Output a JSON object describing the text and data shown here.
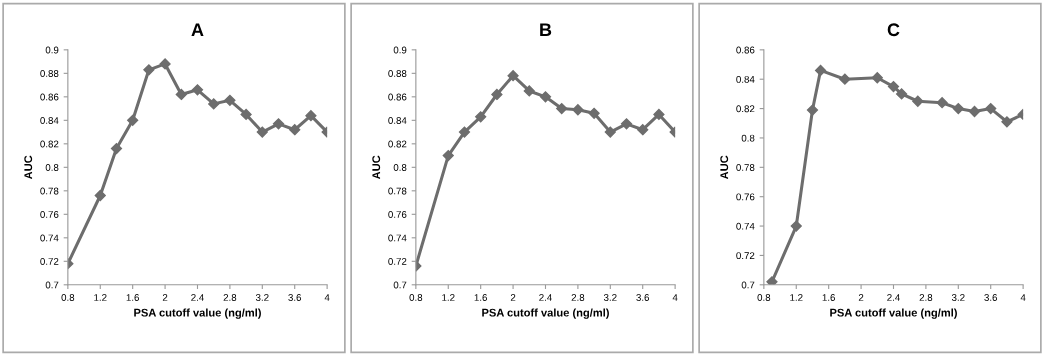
{
  "chart_data": [
    {
      "type": "line",
      "title": "A",
      "xlabel": "PSA cutoff value (ng/ml)",
      "ylabel": "AUC",
      "marker": "diamond",
      "grid": false,
      "x": [
        0.8,
        1.2,
        1.4,
        1.6,
        1.8,
        2.0,
        2.2,
        2.4,
        2.6,
        2.8,
        3.0,
        3.2,
        3.4,
        3.6,
        3.8,
        4.0
      ],
      "series": [
        {
          "color": "#6d6d6d",
          "values": [
            0.718,
            0.776,
            0.816,
            0.84,
            0.883,
            0.888,
            0.862,
            0.866,
            0.854,
            0.857,
            0.845,
            0.83,
            0.837,
            0.832,
            0.844,
            0.83
          ]
        }
      ],
      "xlim": [
        0.8,
        4
      ],
      "xticks": [
        0.8,
        1.2,
        1.6,
        2,
        2.4,
        2.8,
        3.2,
        3.6,
        4
      ],
      "ylim": [
        0.7,
        0.9
      ],
      "yticks": [
        0.7,
        0.72,
        0.74,
        0.76,
        0.78,
        0.8,
        0.82,
        0.84,
        0.86,
        0.88,
        0.9
      ]
    },
    {
      "type": "line",
      "title": "B",
      "xlabel": "PSA cutoff value (ng/ml)",
      "ylabel": "AUC",
      "marker": "diamond",
      "grid": false,
      "x": [
        0.8,
        1.2,
        1.4,
        1.6,
        1.8,
        2.0,
        2.2,
        2.4,
        2.6,
        2.8,
        3.0,
        3.2,
        3.4,
        3.6,
        3.8,
        4.0
      ],
      "series": [
        {
          "color": "#6d6d6d",
          "values": [
            0.716,
            0.81,
            0.83,
            0.843,
            0.862,
            0.878,
            0.865,
            0.86,
            0.85,
            0.849,
            0.846,
            0.83,
            0.837,
            0.832,
            0.845,
            0.83
          ]
        }
      ],
      "xlim": [
        0.8,
        4
      ],
      "xticks": [
        0.8,
        1.2,
        1.6,
        2,
        2.4,
        2.8,
        3.2,
        3.6,
        4
      ],
      "ylim": [
        0.7,
        0.9
      ],
      "yticks": [
        0.7,
        0.72,
        0.74,
        0.76,
        0.78,
        0.8,
        0.82,
        0.84,
        0.86,
        0.88,
        0.9
      ]
    },
    {
      "type": "line",
      "title": "C",
      "xlabel": "PSA cutoff value (ng/ml)",
      "ylabel": "AUC",
      "marker": "diamond",
      "grid": false,
      "x": [
        0.9,
        1.2,
        1.4,
        1.5,
        1.8,
        2.2,
        2.4,
        2.5,
        2.7,
        3.0,
        3.2,
        3.4,
        3.6,
        3.8,
        4.0
      ],
      "series": [
        {
          "color": "#6d6d6d",
          "values": [
            0.702,
            0.74,
            0.819,
            0.846,
            0.84,
            0.841,
            0.835,
            0.83,
            0.825,
            0.824,
            0.82,
            0.818,
            0.82,
            0.811,
            0.816
          ]
        }
      ],
      "xlim": [
        0.8,
        4
      ],
      "xticks": [
        0.8,
        1.2,
        1.6,
        2,
        2.4,
        2.8,
        3.2,
        3.6,
        4
      ],
      "ylim": [
        0.7,
        0.86
      ],
      "yticks": [
        0.7,
        0.72,
        0.74,
        0.76,
        0.78,
        0.8,
        0.82,
        0.84,
        0.86
      ]
    }
  ]
}
